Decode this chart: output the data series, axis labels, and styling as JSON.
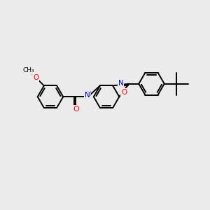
{
  "background_color": "#ebebeb",
  "bond_color": "#000000",
  "bond_width": 1.4,
  "atom_colors": {
    "O": "#ff0000",
    "N": "#0000cd",
    "C": "#000000",
    "H": "#5fa0a0"
  },
  "figsize": [
    3.0,
    3.0
  ],
  "dpi": 100,
  "xlim": [
    0,
    10
  ],
  "ylim": [
    0,
    10
  ]
}
